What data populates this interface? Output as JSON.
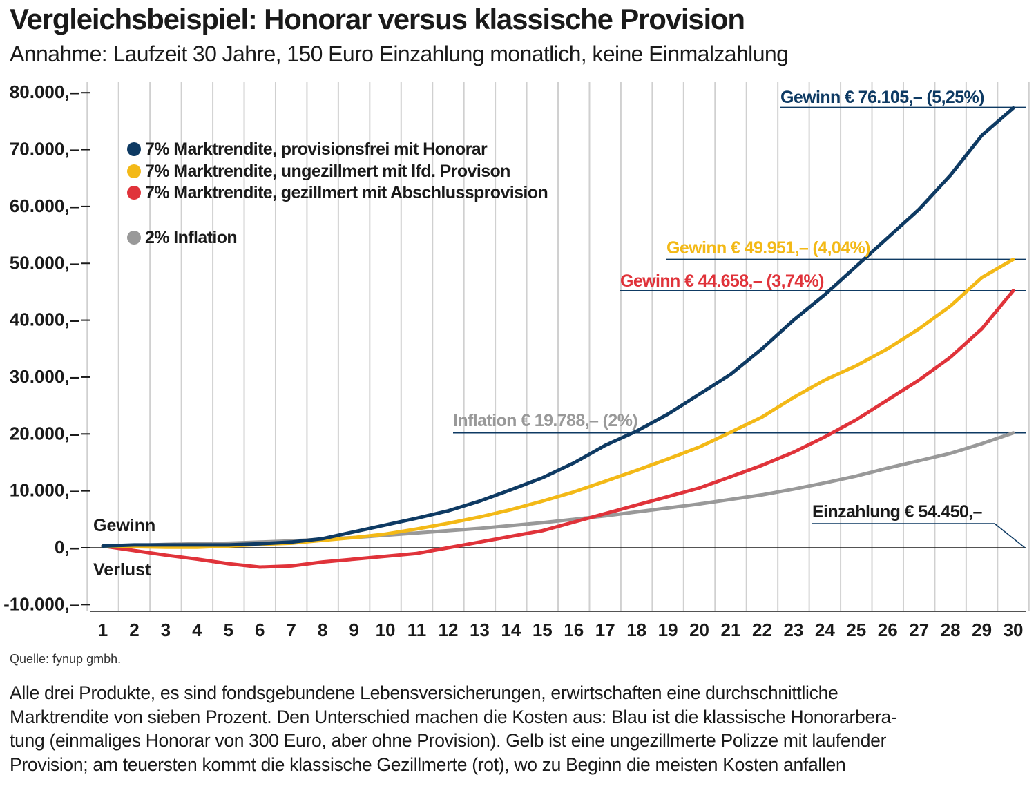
{
  "title": "Vergleichsbeispiel: Honorar versus klassische Provision",
  "subtitle": "Annahme: Laufzeit 30 Jahre, 150 Euro Einzahlung monatlich, keine Einmalzahlung",
  "source": "Quelle: fynup gmbh.",
  "caption_lines": [
    "Alle drei Produkte, es sind fondsgebundene Lebensversicherungen, erwirtschaften eine durchschnittliche",
    "Marktrendite von sieben Prozent. Den Unterschied machen die Kosten aus: Blau ist die klassische Honorarbera-",
    "tung (einmaliges Honorar von 300 Euro, aber ohne Provision). Gelb ist eine ungezillmerte Polizze mit laufender",
    "Provision; am teuersten kommt die klassische Gezillmerte (rot), wo zu Beginn die meisten Kosten anfallen"
  ],
  "colors": {
    "blue": "#0e3a63",
    "yellow": "#f3b917",
    "red": "#e0333a",
    "gray": "#999999",
    "grid": "#d0d0d0",
    "axis": "#1a1a1a",
    "leader": "#0e3a63"
  },
  "chart_data": {
    "type": "line",
    "x": [
      1,
      2,
      3,
      4,
      5,
      6,
      7,
      8,
      9,
      10,
      11,
      12,
      13,
      14,
      15,
      16,
      17,
      18,
      19,
      20,
      21,
      22,
      23,
      24,
      25,
      26,
      27,
      28,
      29,
      30
    ],
    "x_tick_labels": [
      "1",
      "2",
      "3",
      "4",
      "5",
      "6",
      "7",
      "8",
      "9",
      "10",
      "11",
      "12",
      "13",
      "14",
      "15",
      "16",
      "17",
      "18",
      "19",
      "20",
      "21",
      "22",
      "23",
      "24",
      "25",
      "26",
      "27",
      "28",
      "29",
      "30"
    ],
    "ylim": [
      -10000,
      80000
    ],
    "y_ticks": [
      -10000,
      0,
      10000,
      20000,
      30000,
      40000,
      50000,
      60000,
      70000,
      80000
    ],
    "y_tick_labels": [
      "-10.000,–",
      "0,–",
      "10.000,–",
      "20.000,–",
      "30.000,–",
      "40.000,–",
      "50.000,–",
      "60.000,–",
      "70.000,–",
      "80.000,–"
    ],
    "zero_labels": {
      "above": "Gewinn",
      "below": "Verlust"
    },
    "grid": "vertical",
    "legend_position": "top-left",
    "series": [
      {
        "name": "7% Marktrendite, provisionsfrei mit Honorar",
        "color_key": "blue",
        "values": [
          300,
          500,
          500,
          500,
          500,
          700,
          1000,
          1600,
          2800,
          4000,
          5200,
          6500,
          8200,
          10200,
          12300,
          14900,
          18000,
          20500,
          23500,
          27000,
          30500,
          35000,
          40000,
          44500,
          49500,
          54500,
          59500,
          65500,
          72500,
          77300
        ]
      },
      {
        "name": "7% Marktrendite, ungezillmert mit lfd. Provison",
        "color_key": "yellow",
        "values": [
          300,
          200,
          100,
          100,
          300,
          600,
          800,
          1300,
          1800,
          2400,
          3300,
          4300,
          5400,
          6700,
          8200,
          9800,
          11700,
          13600,
          15600,
          17700,
          20300,
          23000,
          26400,
          29500,
          32000,
          35000,
          38500,
          42500,
          47500,
          50700
        ]
      },
      {
        "name": "7% Marktrendite, gezillmert mit Abschlussprovision",
        "color_key": "red",
        "values": [
          300,
          -500,
          -1300,
          -2000,
          -2800,
          -3400,
          -3200,
          -2500,
          -2000,
          -1500,
          -1000,
          0,
          1000,
          2000,
          3000,
          4500,
          6000,
          7500,
          9000,
          10500,
          12500,
          14500,
          16800,
          19500,
          22500,
          26000,
          29500,
          33500,
          38500,
          45200
        ]
      },
      {
        "name": "2% Inflation",
        "color_key": "gray",
        "values": [
          300,
          400,
          600,
          700,
          800,
          1000,
          1200,
          1500,
          1800,
          2200,
          2600,
          3000,
          3400,
          3900,
          4400,
          5000,
          5600,
          6300,
          7000,
          7700,
          8500,
          9300,
          10300,
          11400,
          12600,
          14000,
          15300,
          16600,
          18300,
          20200
        ]
      }
    ],
    "annotations": [
      {
        "text": "Gewinn € 76.105,– (5,25%)",
        "color_key": "blue"
      },
      {
        "text": "Gewinn € 49.951,– (4,04%)",
        "color_key": "yellow"
      },
      {
        "text": "Gewinn € 44.658,– (3,74%)",
        "color_key": "red"
      },
      {
        "text": "Inflation € 19.788,– (2%)",
        "color_key": "gray"
      },
      {
        "text": "Einzahlung € 54.450,–",
        "color_key": "axis"
      }
    ]
  }
}
